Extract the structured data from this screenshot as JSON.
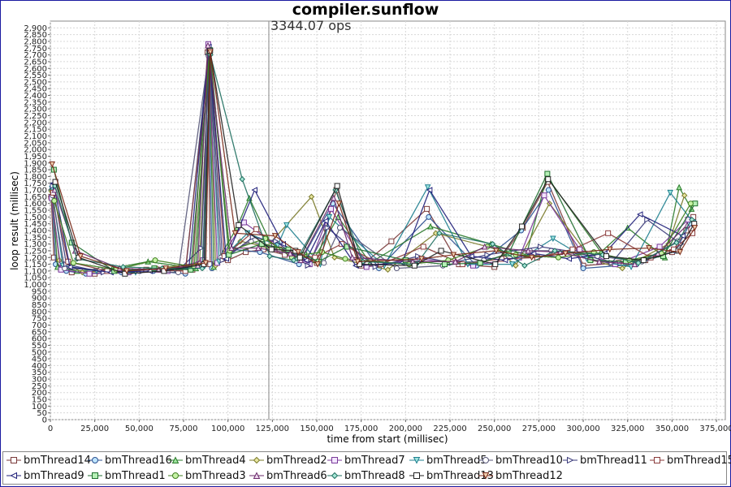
{
  "chart_data": {
    "type": "line",
    "title": "compiler.sunflow",
    "annotation": "3344.07 ops",
    "annotation_x": 123000,
    "xlabel": "time from start (millisec)",
    "ylabel": "loop result (millisec)",
    "xlim": [
      0,
      380000
    ],
    "ylim": [
      0,
      2950
    ],
    "x_ticks": [
      0,
      25000,
      50000,
      75000,
      100000,
      125000,
      150000,
      175000,
      200000,
      225000,
      250000,
      275000,
      300000,
      325000,
      350000,
      375000
    ],
    "x_tick_labels": [
      "0",
      "25,000",
      "50,000",
      "75,000",
      "100,000",
      "125,000",
      "150,000",
      "175,000",
      "200,000",
      "225,000",
      "250,000",
      "275,000",
      "300,000",
      "325,000",
      "350,000",
      "375,000"
    ],
    "y_ticks": [
      0,
      50,
      100,
      150,
      200,
      250,
      300,
      350,
      400,
      450,
      500,
      550,
      600,
      650,
      700,
      750,
      800,
      850,
      900,
      950,
      1000,
      1050,
      1100,
      1150,
      1200,
      1250,
      1300,
      1350,
      1400,
      1450,
      1500,
      1550,
      1600,
      1650,
      1700,
      1750,
      1800,
      1850,
      1900,
      1950,
      2000,
      2050,
      2100,
      2150,
      2200,
      2250,
      2300,
      2350,
      2400,
      2450,
      2500,
      2550,
      2600,
      2650,
      2700,
      2750,
      2800,
      2850,
      2900
    ],
    "y_tick_labels": [
      "0",
      "50",
      "100",
      "150",
      "200",
      "250",
      "300",
      "350",
      "400",
      "450",
      "500",
      "550",
      "600",
      "650",
      "700",
      "750",
      "800",
      "850",
      "900",
      "950",
      "1,000",
      "1,050",
      "1,100",
      "1,150",
      "1,200",
      "1,250",
      "1,300",
      "1,350",
      "1,400",
      "1,450",
      "1,500",
      "1,550",
      "1,600",
      "1,650",
      "1,700",
      "1,750",
      "1,800",
      "1,850",
      "1,900",
      "1,950",
      "2,000",
      "2,050",
      "2,100",
      "2,150",
      "2,200",
      "2,250",
      "2,300",
      "2,350",
      "2,400",
      "2,450",
      "2,500",
      "2,550",
      "2,600",
      "2,650",
      "2,700",
      "2,750",
      "2,800",
      "2,850",
      "2,900"
    ],
    "grid": true,
    "legend_position": "bottom",
    "series": [
      {
        "name": "bmThread14",
        "color": "#ffffff",
        "edge": "#7a3a3a",
        "marker": "square",
        "x": [
          500,
          2000,
          6000,
          12000,
          25000,
          45000,
          62000,
          80000,
          88500,
          90000,
          100000,
          110000,
          120000,
          132000,
          150000,
          161000,
          175000,
          192000,
          212000,
          230000,
          250000,
          266000,
          280000,
          300000,
          320000,
          335000,
          350000,
          358000,
          362000
        ],
        "y": [
          1650,
          1200,
          1120,
          1090,
          1080,
          1100,
          1110,
          1110,
          2720,
          1150,
          1180,
          1240,
          1260,
          1220,
          1160,
          1700,
          1140,
          1320,
          1560,
          1150,
          1130,
          1420,
          1760,
          1140,
          1160,
          1180,
          1240,
          1400,
          1500
        ]
      },
      {
        "name": "bmThread16",
        "color": "#bfe6ff",
        "edge": "#2b4f8f",
        "marker": "circle",
        "x": [
          800,
          3000,
          9000,
          20000,
          40000,
          58000,
          76000,
          89000,
          91000,
          103000,
          118000,
          140000,
          159000,
          185000,
          213000,
          240000,
          265000,
          280500,
          300000,
          330000,
          352000,
          360000
        ],
        "y": [
          1700,
          1150,
          1100,
          1080,
          1090,
          1100,
          1080,
          2700,
          1120,
          1260,
          1240,
          1150,
          1600,
          1120,
          1500,
          1140,
          1400,
          1700,
          1120,
          1150,
          1250,
          1450
        ]
      },
      {
        "name": "bmThread4",
        "color": "#9fe59f",
        "edge": "#2a7a2a",
        "marker": "triangle",
        "x": [
          1000,
          4000,
          15000,
          35000,
          55000,
          82000,
          89300,
          92000,
          105000,
          112000,
          125000,
          148000,
          162000,
          180000,
          214000,
          248000,
          268000,
          279500,
          310000,
          325000,
          346000,
          354000,
          361000
        ],
        "y": [
          1720,
          1130,
          1100,
          1120,
          1170,
          1120,
          2750,
          1130,
          1420,
          1640,
          1280,
          1180,
          1500,
          1160,
          1430,
          1300,
          1220,
          1800,
          1240,
          1420,
          1200,
          1720,
          1560
        ]
      },
      {
        "name": "bmThread2",
        "color": "#e8e6a0",
        "edge": "#7a7a2a",
        "marker": "diamond",
        "x": [
          600,
          5000,
          18000,
          38000,
          60000,
          84000,
          89600,
          93000,
          107000,
          122000,
          147000,
          160000,
          190000,
          217000,
          252000,
          262000,
          281000,
          305000,
          322000,
          348000,
          357000
        ],
        "y": [
          1690,
          1180,
          1090,
          1100,
          1120,
          1160,
          2730,
          1140,
          1320,
          1280,
          1650,
          1200,
          1110,
          1380,
          1260,
          1140,
          1600,
          1180,
          1120,
          1300,
          1660
        ]
      },
      {
        "name": "bmThread7",
        "color": "#f3e6ff",
        "edge": "#7a3a9a",
        "marker": "square",
        "x": [
          700,
          6000,
          22000,
          44000,
          66000,
          86000,
          88900,
          94000,
          109000,
          126000,
          146000,
          158000,
          178000,
          208000,
          238000,
          264000,
          278000,
          298000,
          318000,
          343000,
          359000
        ],
        "y": [
          1640,
          1110,
          1080,
          1090,
          1100,
          1180,
          2780,
          1160,
          1460,
          1300,
          1150,
          1560,
          1130,
          1190,
          1140,
          1200,
          1660,
          1260,
          1150,
          1280,
          1480
        ]
      },
      {
        "name": "bmThread5",
        "color": "#9fe6e0",
        "edge": "#1f7f8f",
        "marker": "triangle-down",
        "x": [
          900,
          7000,
          26000,
          48000,
          70000,
          87000,
          89800,
          95000,
          111000,
          128000,
          133000,
          152000,
          157000,
          188000,
          212500,
          235000,
          260000,
          283000,
          302000,
          327000,
          349000,
          362000
        ],
        "y": [
          1710,
          1140,
          1100,
          1090,
          1110,
          1140,
          2710,
          1170,
          1380,
          1290,
          1440,
          1150,
          1500,
          1140,
          1720,
          1150,
          1150,
          1340,
          1190,
          1130,
          1680,
          1460
        ]
      },
      {
        "name": "bmThread10",
        "color": "#ffffff",
        "edge": "#555577",
        "marker": "circle",
        "x": [
          1200,
          8000,
          28000,
          50000,
          72000,
          89100,
          96000,
          113000,
          130000,
          154000,
          163000,
          195000,
          221000,
          244000,
          270000,
          282000,
          308000,
          333000,
          353000
        ],
        "y": [
          1660,
          1120,
          1110,
          1100,
          1090,
          2690,
          1200,
          1320,
          1250,
          1160,
          1420,
          1120,
          1140,
          1180,
          1250,
          1250,
          1210,
          1170,
          1320
        ]
      },
      {
        "name": "bmThread11",
        "color": "#ffffff",
        "edge": "#3a3a7a",
        "marker": "triangle-right",
        "x": [
          1400,
          9000,
          30000,
          52000,
          74000,
          85000,
          89400,
          97000,
          114000,
          127000,
          145000,
          156000,
          183000,
          207000,
          226000,
          246000,
          276000,
          296000,
          316000,
          336000,
          355000
        ],
        "y": [
          1730,
          1150,
          1090,
          1100,
          1130,
          1270,
          2740,
          1180,
          1350,
          1320,
          1140,
          1420,
          1130,
          1210,
          1160,
          1220,
          1280,
          1240,
          1160,
          1480,
          1300
        ]
      },
      {
        "name": "bmThread15",
        "color": "#ffffff",
        "edge": "#8a3a3a",
        "marker": "square",
        "x": [
          1600,
          10000,
          32000,
          54000,
          76000,
          89700,
          98000,
          116000,
          129000,
          149000,
          164000,
          186000,
          210000,
          232000,
          254000,
          274000,
          294000,
          314000,
          338000,
          351000,
          361500
        ],
        "y": [
          1680,
          1170,
          1100,
          1110,
          1100,
          2725,
          1210,
          1410,
          1260,
          1200,
          1300,
          1150,
          1280,
          1150,
          1190,
          1200,
          1260,
          1380,
          1200,
          1260,
          1380
        ]
      },
      {
        "name": "bmThread9",
        "color": "#ffffff",
        "edge": "#20207a",
        "marker": "triangle-left",
        "x": [
          1800,
          11000,
          34000,
          56000,
          78000,
          89200,
          99000,
          115000,
          131000,
          144000,
          155000,
          172000,
          198000,
          213500,
          237000,
          256000,
          272000,
          292000,
          312000,
          332000,
          356000
        ],
        "y": [
          1750,
          1130,
          1090,
          1100,
          1120,
          2760,
          1190,
          1700,
          1300,
          1180,
          1470,
          1140,
          1160,
          1700,
          1210,
          1180,
          1230,
          1190,
          1230,
          1520,
          1360
        ]
      },
      {
        "name": "bmThread1",
        "color": "#b6f0b6",
        "edge": "#1f6f2f",
        "marker": "square",
        "x": [
          2000,
          12000,
          36000,
          58500,
          79000,
          89900,
          100500,
          119000,
          134000,
          143000,
          151000,
          167000,
          200000,
          222000,
          242000,
          258000,
          279800,
          304000,
          324000,
          345000,
          363000
        ],
        "y": [
          1850,
          1310,
          1100,
          1120,
          1110,
          2735,
          1220,
          1300,
          1260,
          1220,
          1170,
          1280,
          1180,
          1150,
          1160,
          1230,
          1820,
          1180,
          1170,
          1210,
          1600
        ]
      },
      {
        "name": "bmThread3",
        "color": "#c6f2a6",
        "edge": "#3f7f1f",
        "marker": "circle",
        "x": [
          2200,
          13000,
          37000,
          59000,
          81000,
          89500,
          101000,
          121000,
          136000,
          142000,
          153000,
          166000,
          202000,
          224000,
          246000,
          262000,
          286000,
          306000,
          326000,
          344000,
          360500
        ],
        "y": [
          1620,
          1160,
          1110,
          1180,
          1130,
          2710,
          1250,
          1340,
          1200,
          1220,
          1240,
          1190,
          1150,
          1180,
          1280,
          1220,
          1200,
          1240,
          1180,
          1230,
          1600
        ]
      },
      {
        "name": "bmThread6",
        "color": "#efd8ef",
        "edge": "#6a2a6a",
        "marker": "triangle",
        "x": [
          2400,
          14000,
          39000,
          61000,
          83000,
          88700,
          102000,
          117000,
          135000,
          141000,
          159500,
          170000,
          204000,
          228000,
          244500,
          269000,
          287000,
          309000,
          329000,
          342000,
          358500
        ],
        "y": [
          1700,
          1250,
          1120,
          1110,
          1140,
          2770,
          1270,
          1270,
          1230,
          1180,
          1640,
          1200,
          1170,
          1170,
          1280,
          1250,
          1240,
          1170,
          1150,
          1230,
          1440
        ]
      },
      {
        "name": "bmThread8",
        "color": "#a6e6d6",
        "edge": "#1f6f5f",
        "marker": "diamond",
        "x": [
          2600,
          15000,
          41000,
          63000,
          85500,
          90100,
          108000,
          123500,
          137000,
          139000,
          160500,
          176000,
          206000,
          219000,
          249000,
          267000,
          284000,
          311000,
          331000,
          352500,
          361200
        ],
        "y": [
          1730,
          1190,
          1130,
          1120,
          1120,
          2700,
          1780,
          1210,
          1180,
          1190,
          1700,
          1170,
          1150,
          1380,
          1300,
          1140,
          1250,
          1220,
          1160,
          1310,
          1480
        ]
      },
      {
        "name": "bmThread13",
        "color": "#ffffff",
        "edge": "#222222",
        "marker": "square",
        "x": [
          2800,
          16000,
          42000,
          64000,
          86500,
          89950,
          106000,
          124500,
          138000,
          140500,
          161500,
          174000,
          205000,
          220000,
          250500,
          265500,
          280200,
          313000,
          334000,
          353500,
          362500
        ],
        "y": [
          1760,
          1200,
          1080,
          1100,
          1150,
          2730,
          1440,
          1260,
          1250,
          1200,
          1730,
          1150,
          1140,
          1250,
          1150,
          1430,
          1780,
          1210,
          1180,
          1250,
          1450
        ]
      },
      {
        "name": "bmThread12",
        "color": "#f0d0b0",
        "edge": "#7a2a1a",
        "marker": "triangle-down",
        "x": [
          1000,
          17000,
          43000,
          65000,
          87500,
          90050,
          104000,
          126500,
          139500,
          150500,
          162500,
          173000,
          209000,
          227000,
          251000,
          271000,
          290000,
          315000,
          337000,
          354500,
          362800
        ],
        "y": [
          1890,
          1210,
          1100,
          1120,
          1160,
          2720,
          1380,
          1360,
          1240,
          1150,
          1600,
          1170,
          1190,
          1220,
          1250,
          1200,
          1230,
          1260,
          1270,
          1240,
          1420
        ]
      }
    ]
  }
}
